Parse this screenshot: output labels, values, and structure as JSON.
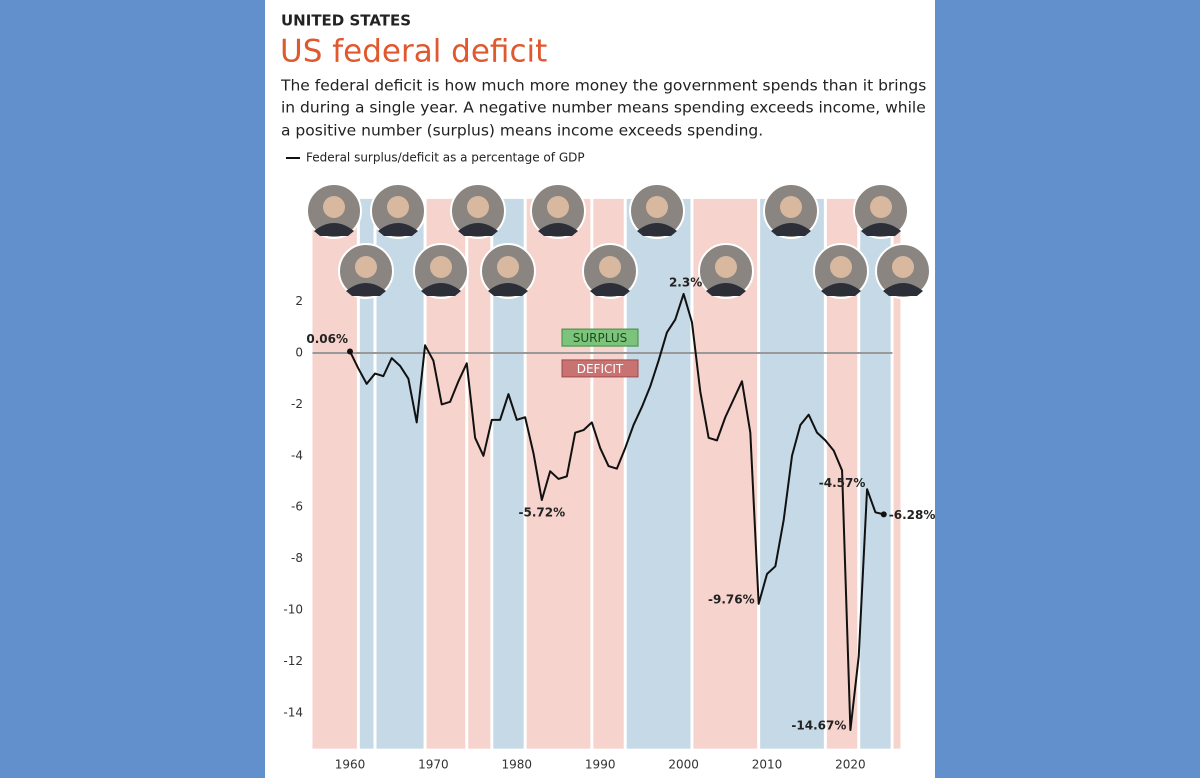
{
  "chart_data": {
    "type": "line",
    "kicker": "UNITED STATES",
    "title": "US federal deficit",
    "subtitle": [
      "The federal deficit is how much more money the government spends than it brings",
      "in during a single year. A negative number means spending exceeds income, while",
      "a positive number (surplus) means income exceeds spending."
    ],
    "x": [
      1960,
      1961,
      1962,
      1963,
      1964,
      1965,
      1966,
      1967,
      1968,
      1969,
      1970,
      1971,
      1972,
      1973,
      1974,
      1975,
      1976,
      1977,
      1978,
      1979,
      1980,
      1981,
      1982,
      1983,
      1984,
      1985,
      1986,
      1987,
      1988,
      1989,
      1990,
      1991,
      1992,
      1993,
      1994,
      1995,
      1996,
      1997,
      1998,
      1999,
      2000,
      2001,
      2002,
      2003,
      2004,
      2005,
      2006,
      2007,
      2008,
      2009,
      2010,
      2011,
      2012,
      2013,
      2014,
      2015,
      2016,
      2017,
      2018,
      2019,
      2020,
      2021,
      2022,
      2023,
      2024
    ],
    "series": [
      {
        "name": "Federal surplus/deficit as a percentage of GDP",
        "color": "#111111",
        "values": [
          0.06,
          -0.6,
          -1.2,
          -0.8,
          -0.9,
          -0.2,
          -0.5,
          -1.0,
          -2.7,
          0.3,
          -0.3,
          -2.0,
          -1.9,
          -1.1,
          -0.4,
          -3.3,
          -4.0,
          -2.6,
          -2.6,
          -1.6,
          -2.6,
          -2.5,
          -3.9,
          -5.72,
          -4.6,
          -4.9,
          -4.8,
          -3.1,
          -3.0,
          -2.7,
          -3.7,
          -4.4,
          -4.5,
          -3.7,
          -2.8,
          -2.1,
          -1.3,
          -0.3,
          0.8,
          1.3,
          2.3,
          1.2,
          -1.5,
          -3.3,
          -3.4,
          -2.5,
          -1.8,
          -1.1,
          -3.1,
          -9.76,
          -8.6,
          -8.3,
          -6.5,
          -4.0,
          -2.8,
          -2.4,
          -3.1,
          -3.4,
          -3.8,
          -4.57,
          -14.67,
          -11.8,
          -5.3,
          -6.2,
          -6.28
        ],
        "value_labels": [
          "0.06%",
          null,
          null,
          null,
          null,
          null,
          null,
          null,
          null,
          null,
          null,
          null,
          null,
          null,
          null,
          null,
          null,
          null,
          null,
          null,
          null,
          null,
          null,
          "-5.72%",
          null,
          null,
          null,
          null,
          null,
          null,
          null,
          null,
          null,
          null,
          null,
          null,
          null,
          null,
          null,
          null,
          "2.3%",
          null,
          null,
          null,
          null,
          null,
          null,
          null,
          null,
          "-9.76%",
          null,
          null,
          null,
          null,
          null,
          null,
          null,
          null,
          null,
          "-4.57%",
          "-14.67%",
          null,
          null,
          null,
          "-6.28%"
        ]
      }
    ],
    "xlim": [
      1955.5,
      2026
    ],
    "ylim": [
      -15.4,
      6
    ],
    "xticks": [
      1960,
      1970,
      1980,
      1990,
      2000,
      2010,
      2020
    ],
    "yticks": [
      2,
      0,
      -2,
      -4,
      -6,
      -8,
      -10,
      -12,
      -14
    ],
    "terms": [
      {
        "start": 1953,
        "end": 1961,
        "color": "#f6d3cc"
      },
      {
        "start": 1961,
        "end": 1963,
        "color": "#c5d9e6"
      },
      {
        "start": 1963,
        "end": 1969,
        "color": "#c5d9e6"
      },
      {
        "start": 1969,
        "end": 1974,
        "color": "#f6d3cc"
      },
      {
        "start": 1974,
        "end": 1977,
        "color": "#f6d3cc"
      },
      {
        "start": 1977,
        "end": 1981,
        "color": "#c5d9e6"
      },
      {
        "start": 1981,
        "end": 1989,
        "color": "#f6d3cc"
      },
      {
        "start": 1989,
        "end": 1993,
        "color": "#f6d3cc"
      },
      {
        "start": 1993,
        "end": 2001,
        "color": "#c5d9e6"
      },
      {
        "start": 2001,
        "end": 2009,
        "color": "#f6d3cc"
      },
      {
        "start": 2009,
        "end": 2017,
        "color": "#c5d9e6"
      },
      {
        "start": 2017,
        "end": 2021,
        "color": "#f6d3cc"
      },
      {
        "start": 2021,
        "end": 2025,
        "color": "#c5d9e6"
      },
      {
        "start": 2025,
        "end": 2029,
        "color": "#f6d3cc"
      }
    ],
    "surplus_label": "SURPLUS",
    "deficit_label": "DEFICIT"
  }
}
